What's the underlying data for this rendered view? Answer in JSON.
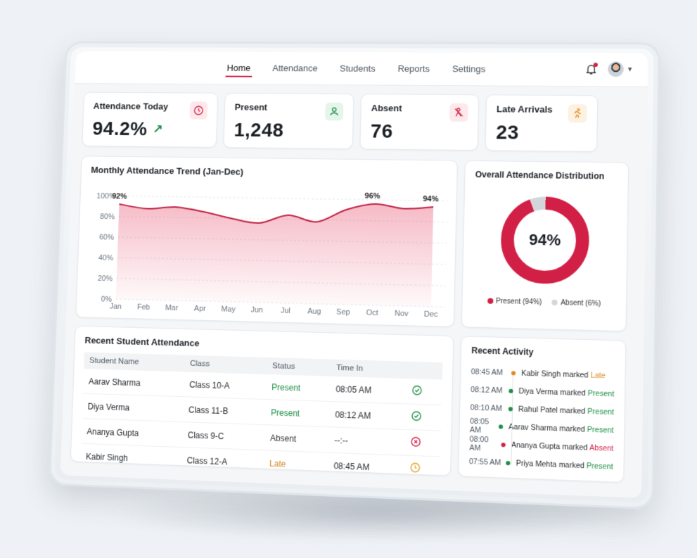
{
  "nav": {
    "tabs": [
      "Home",
      "Attendance",
      "Students",
      "Reports",
      "Settings"
    ],
    "active": "Home"
  },
  "stats": [
    {
      "label": "Attendance Today",
      "value": "94.2%",
      "icon": "clock-icon",
      "accent": "#d21f45",
      "tint": "#fde8ec"
    },
    {
      "label": "Present",
      "value": "1,248",
      "icon": "user-icon",
      "accent": "#1c8f46",
      "tint": "#e5f5eb"
    },
    {
      "label": "Absent",
      "value": "76",
      "icon": "user-cross-icon",
      "accent": "#d21f45",
      "tint": "#fde8ec"
    },
    {
      "label": "Late Arrivals",
      "value": "23",
      "icon": "running-icon",
      "accent": "#e08a1e",
      "tint": "#fdf1e2"
    }
  ],
  "trend_chart": {
    "title": "Monthly Attendance Trend (Jan-Dec)",
    "annotations": [
      "92%",
      "96%",
      "94%"
    ]
  },
  "chart_data": [
    {
      "type": "area",
      "title": "Monthly Attendance Trend (Jan-Dec)",
      "categories": [
        "Jan",
        "Feb",
        "Mar",
        "Apr",
        "May",
        "Jun",
        "Jul",
        "Aug",
        "Sep",
        "Oct",
        "Nov",
        "Dec"
      ],
      "values": [
        92,
        88,
        90,
        86,
        80,
        76,
        84,
        78,
        90,
        96,
        92,
        94
      ],
      "yticks": [
        "0%",
        "20%",
        "40%",
        "60%",
        "80%",
        "100%"
      ],
      "ylim": [
        0,
        100
      ],
      "grid": true,
      "color": "#c01d3f"
    },
    {
      "type": "pie",
      "title": "Overall Attendance Distribution",
      "center_label": "94%",
      "slices": [
        {
          "name": "Present (94%)",
          "value": 94,
          "color": "#d21f45"
        },
        {
          "name": "Absent (6%)",
          "value": 6,
          "color": "#d3d7db"
        }
      ]
    }
  ],
  "table": {
    "title": "Recent Student Attendance",
    "columns": [
      "Student Name",
      "Class",
      "Status",
      "Time In",
      ""
    ],
    "rows": [
      {
        "name": "Aarav Sharma",
        "class": "Class 10-A",
        "status": "Present",
        "time": "08:05 AM",
        "icon": "check-circle-icon"
      },
      {
        "name": "Diya Verma",
        "class": "Class 11-B",
        "status": "Present",
        "time": "08:12 AM",
        "icon": "check-circle-icon"
      },
      {
        "name": "Ananya Gupta",
        "class": "Class 9-C",
        "status": "Absent",
        "time": "--:--",
        "icon": "x-circle-icon"
      },
      {
        "name": "Kabir Singh",
        "class": "Class 12-A",
        "status": "Late",
        "time": "08:45 AM",
        "icon": "clock-icon"
      }
    ]
  },
  "activity": {
    "title": "Recent Activity",
    "items": [
      {
        "time": "08:45 AM",
        "text": "Kabir Singh marked",
        "status": "Late",
        "color": "#e08a1e"
      },
      {
        "time": "08:12 AM",
        "text": "Diya Verma marked",
        "status": "Present",
        "color": "#1c8f46"
      },
      {
        "time": "08:10 AM",
        "text": "Rahul Patel marked",
        "status": "Present",
        "color": "#1c8f46"
      },
      {
        "time": "08:05 AM",
        "text": "Aarav Sharma marked",
        "status": "Present",
        "color": "#1c8f46"
      },
      {
        "time": "08:00 AM",
        "text": "Ananya Gupta marked",
        "status": "Absent",
        "color": "#d21f45"
      },
      {
        "time": "07:55 AM",
        "text": "Priya Mehta marked",
        "status": "Present",
        "color": "#1c8f46"
      }
    ]
  }
}
